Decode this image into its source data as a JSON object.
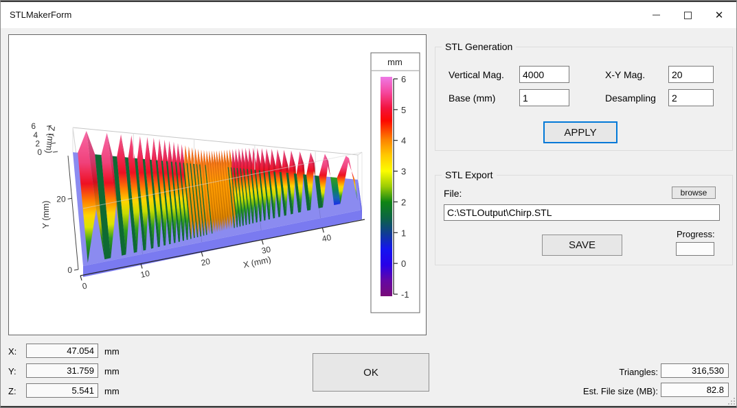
{
  "window": {
    "title": "STLMakerForm",
    "controls": {
      "minimize": "minimize",
      "maximize": "maximize",
      "close": "✕"
    }
  },
  "stl_generation": {
    "title": "STL Generation",
    "fields": [
      {
        "label": "Vertical Mag.",
        "value": "4000"
      },
      {
        "label": "X-Y Mag.",
        "value": "20"
      },
      {
        "label": "Base (mm)",
        "value": "1"
      },
      {
        "label": "Desampling",
        "value": "2"
      }
    ],
    "apply_label": "APPLY"
  },
  "stl_export": {
    "title": "STL Export",
    "file_label": "File:",
    "browse_label": "browse",
    "file_path": "C:\\STLOutput\\Chirp.STL",
    "save_label": "SAVE",
    "progress_label": "Progress:",
    "progress_value": ""
  },
  "coordinates": {
    "rows": [
      {
        "label": "X:",
        "value": "47.054",
        "unit": "mm"
      },
      {
        "label": "Y:",
        "value": "31.759",
        "unit": "mm"
      },
      {
        "label": "Z:",
        "value": "5.541",
        "unit": "mm"
      }
    ]
  },
  "ok_label": "OK",
  "stats": {
    "rows": [
      {
        "label": "Triangles:",
        "value": "316,530"
      },
      {
        "label": "Est. File size (MB):",
        "value": "82.8"
      }
    ]
  },
  "chart_data": {
    "type": "surface",
    "description": "3D chirp surface, ridges along Y with frequency increasing toward center of X (dense orange band), on a flat rectangular base slab",
    "xlabel": "X (mm)",
    "ylabel": "Y (mm)",
    "zlabel": "Z (mm)",
    "x_range": [
      0,
      47
    ],
    "y_range": [
      0,
      32
    ],
    "z_range": [
      -1,
      6
    ],
    "x_ticks": [
      0,
      10,
      20,
      30,
      40
    ],
    "y_ticks": [
      0,
      20
    ],
    "z_ticks": [
      0,
      2,
      4,
      6
    ],
    "surface_model": {
      "kind": "chirp-ridges",
      "ridge_height_mm": 5.5,
      "base_thickness_mm": 1,
      "freq_min": 10,
      "freq_max": 120,
      "dense_band_x_mm": [
        18,
        26
      ],
      "dense_band_height_mm": 3.6
    },
    "palette": {
      "top": "#f25e8e",
      "crest": "#ee1022",
      "mid": "#ff7e00",
      "slope": "#ffd400",
      "valley": "#2f9e1e",
      "floor": "#0a5c2e",
      "dense": "#ff9c00",
      "base": "#8b8bf0",
      "base_front": "#7a7af0",
      "base_side": "#6a6ae8",
      "wire": "#d0d0d0"
    },
    "colorbar": {
      "title": "mm",
      "ticks": [
        6,
        5,
        4,
        3,
        2,
        1,
        0,
        -1
      ],
      "stops": [
        {
          "v": 6,
          "c": "#ee7ae6"
        },
        {
          "v": 5.5,
          "c": "#f5479e"
        },
        {
          "v": 5,
          "c": "#f2133c"
        },
        {
          "v": 4.6,
          "c": "#fc0800"
        },
        {
          "v": 4,
          "c": "#fc8200"
        },
        {
          "v": 3.5,
          "c": "#ffc800"
        },
        {
          "v": 3,
          "c": "#fcfc00"
        },
        {
          "v": 2.5,
          "c": "#9ccc04"
        },
        {
          "v": 2,
          "c": "#0e8414"
        },
        {
          "v": 1.5,
          "c": "#0c6444"
        },
        {
          "v": 1,
          "c": "#103c94"
        },
        {
          "v": 0.5,
          "c": "#1414f0"
        },
        {
          "v": 0,
          "c": "#2800e8"
        },
        {
          "v": -0.5,
          "c": "#6408a4"
        },
        {
          "v": -1,
          "c": "#780b78"
        }
      ]
    }
  }
}
